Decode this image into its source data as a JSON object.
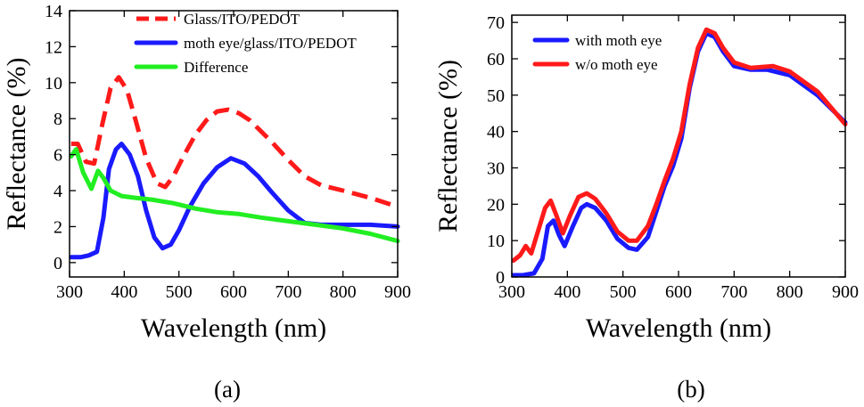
{
  "panel_labels": [
    "(a)",
    "(b)"
  ],
  "chart_data": [
    {
      "type": "line",
      "panel_label": "(a)",
      "xlabel": "Wavelength (nm)",
      "ylabel": "Reflectance (%)",
      "xlim": [
        300,
        900
      ],
      "ylim": [
        -0.8,
        14
      ],
      "xticks": [
        300,
        400,
        500,
        600,
        700,
        800,
        900
      ],
      "yticks": [
        0,
        2,
        4,
        6,
        8,
        10,
        12,
        14
      ],
      "grid": false,
      "legend_position": "top",
      "series": [
        {
          "name": "Glass/ITO/PEDOT",
          "color": "#ff1a1a",
          "dash": "dashed",
          "x": [
            303,
            315,
            330,
            345,
            360,
            375,
            390,
            405,
            420,
            440,
            460,
            475,
            490,
            510,
            530,
            550,
            570,
            590,
            610,
            630,
            650,
            670,
            700,
            730,
            760,
            800,
            850,
            900
          ],
          "y": [
            6.6,
            6.6,
            5.6,
            5.5,
            7.7,
            9.7,
            10.3,
            9.6,
            8.0,
            5.8,
            4.4,
            4.2,
            4.8,
            6.0,
            7.1,
            7.9,
            8.4,
            8.5,
            8.3,
            7.9,
            7.3,
            6.7,
            5.7,
            4.8,
            4.3,
            4.0,
            3.6,
            3.1
          ]
        },
        {
          "name": "moth eye/glass/ITO/PEDOT",
          "color": "#1a1aff",
          "dash": "solid",
          "x": [
            303,
            320,
            335,
            350,
            362,
            372,
            385,
            395,
            410,
            425,
            440,
            455,
            470,
            485,
            500,
            520,
            545,
            570,
            595,
            620,
            645,
            670,
            700,
            730,
            760,
            800,
            850,
            900
          ],
          "y": [
            0.3,
            0.3,
            0.4,
            0.6,
            2.5,
            5.2,
            6.3,
            6.6,
            6.0,
            4.8,
            2.9,
            1.4,
            0.8,
            1.0,
            1.8,
            3.1,
            4.4,
            5.3,
            5.8,
            5.5,
            4.8,
            3.9,
            2.9,
            2.2,
            2.1,
            2.1,
            2.1,
            2.0
          ]
        },
        {
          "name": "Difference",
          "color": "#22ee22",
          "dash": "solid",
          "x": [
            303,
            312,
            325,
            340,
            352,
            362,
            375,
            395,
            420,
            450,
            490,
            530,
            570,
            610,
            650,
            700,
            750,
            800,
            850,
            900
          ],
          "y": [
            5.9,
            6.3,
            5.0,
            4.1,
            5.1,
            4.7,
            4.0,
            3.7,
            3.6,
            3.5,
            3.3,
            3.0,
            2.8,
            2.7,
            2.5,
            2.3,
            2.1,
            1.9,
            1.6,
            1.2
          ]
        }
      ]
    },
    {
      "type": "line",
      "panel_label": "(b)",
      "xlabel": "Wavelength (nm)",
      "ylabel": "Reflectance (%)",
      "xlim": [
        300,
        900
      ],
      "ylim": [
        0,
        72
      ],
      "xticks": [
        300,
        400,
        500,
        600,
        700,
        800,
        900
      ],
      "yticks": [
        0,
        10,
        20,
        30,
        40,
        50,
        60,
        70
      ],
      "grid": false,
      "legend_position": "top-left",
      "series": [
        {
          "name": "with moth eye",
          "color": "#1a1aff",
          "dash": "solid",
          "x": [
            303,
            320,
            340,
            355,
            365,
            375,
            385,
            395,
            410,
            425,
            435,
            450,
            470,
            490,
            510,
            525,
            545,
            560,
            575,
            590,
            605,
            620,
            635,
            650,
            665,
            680,
            700,
            730,
            760,
            800,
            850,
            900
          ],
          "y": [
            0.5,
            0.5,
            1.0,
            5.0,
            14.0,
            15.5,
            11.5,
            8.5,
            14.0,
            19.0,
            20.0,
            19.0,
            15.5,
            10.5,
            8.0,
            7.5,
            11.0,
            18.0,
            25.0,
            30.5,
            38.0,
            52.0,
            62.0,
            67.0,
            66.0,
            62.0,
            58.0,
            57.0,
            57.0,
            55.5,
            50.0,
            42.5
          ]
        },
        {
          "name": "w/o moth eye",
          "color": "#ff1a1a",
          "dash": "solid",
          "x": [
            303,
            315,
            325,
            335,
            350,
            360,
            370,
            380,
            392,
            405,
            420,
            435,
            450,
            470,
            490,
            510,
            525,
            545,
            560,
            575,
            590,
            605,
            620,
            635,
            650,
            665,
            680,
            700,
            730,
            770,
            800,
            850,
            900
          ],
          "y": [
            4.5,
            6.0,
            8.5,
            6.5,
            14.0,
            19.0,
            21.0,
            17.0,
            12.0,
            17.0,
            22.0,
            23.0,
            21.5,
            17.5,
            12.5,
            10.0,
            10.0,
            14.0,
            20.0,
            26.5,
            32.5,
            40.0,
            53.0,
            63.0,
            68.0,
            67.0,
            63.0,
            59.0,
            57.5,
            58.0,
            56.5,
            51.0,
            42.0
          ]
        }
      ]
    }
  ]
}
